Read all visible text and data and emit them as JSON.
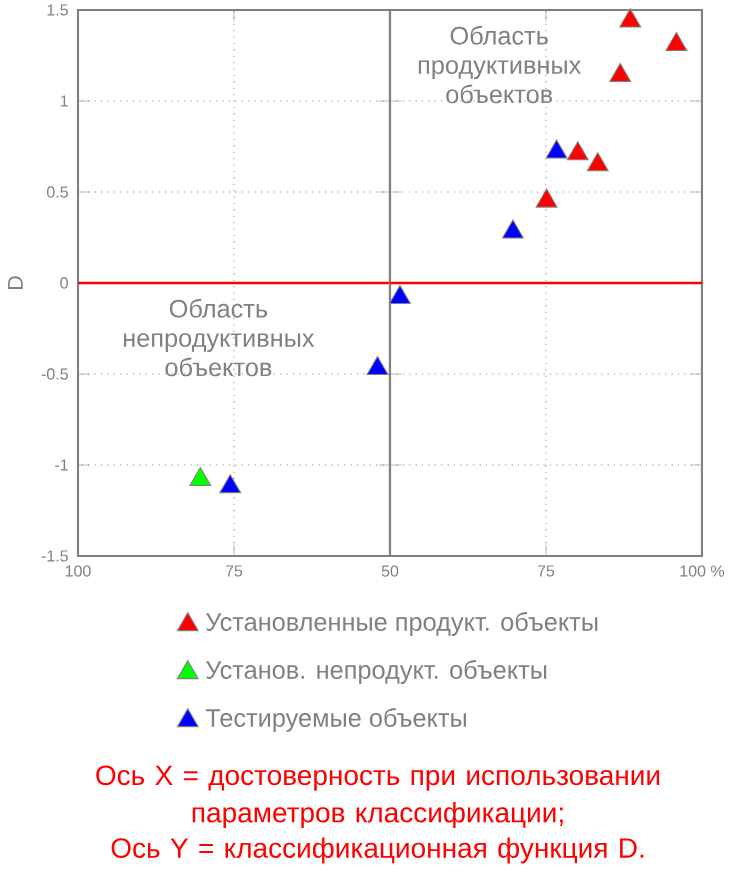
{
  "chart_data": [
    {
      "type": "scatter",
      "ylabel": "D",
      "xlim": [
        100,
        50
      ],
      "ylim": [
        -1.5,
        1.5
      ],
      "xticks": [
        100,
        75,
        50
      ],
      "yticks": [
        -1.5,
        -1,
        -0.5,
        0,
        0.5,
        1,
        1.5
      ],
      "grid": true,
      "legend": "bottom",
      "marker": "triangle",
      "ref_lines": [
        {
          "axis": "y",
          "value": 0,
          "color": "#ff0000"
        }
      ],
      "series": [
        {
          "name": "Установ. непродукт. объекты",
          "color": "#00ff00",
          "x": [
            80.4
          ],
          "values": [
            -1.08
          ]
        },
        {
          "name": "Тестируемые объекты",
          "color": "#0000ff",
          "x": [
            75.6,
            52.0
          ],
          "values": [
            -1.12,
            -0.47
          ]
        }
      ],
      "annotations": [
        "Область непродуктивных объектов",
        "Ось X  = достоверность при использовании параметров классификации;",
        "Ось Y = классификационная функция D."
      ]
    },
    {
      "type": "scatter",
      "xlim": [
        50,
        100
      ],
      "ylim": [
        -1.5,
        1.5
      ],
      "xticks": [
        {
          "value": 50,
          "label": null
        },
        75,
        {
          "value": 100,
          "label": "100 %"
        }
      ],
      "yticks": [
        -1.5,
        -1,
        -0.5,
        0,
        0.5,
        1,
        1.5
      ],
      "tick_labels": "x",
      "grid": true,
      "legend": "bottom",
      "marker": "triangle",
      "ref_lines": [
        {
          "axis": "y",
          "value": 0,
          "color": "#ff0000"
        }
      ],
      "series": [
        {
          "name": "Установленные продукт.  объекты",
          "color": "#ff0000",
          "x": [
            88.5,
            95.9,
            86.9,
            80.1,
            83.3,
            75.1
          ],
          "values": [
            1.44,
            1.31,
            1.14,
            0.71,
            0.65,
            0.45
          ]
        },
        {
          "color": "#0000ff",
          "x": [
            76.7,
            69.7,
            51.6
          ],
          "values": [
            0.72,
            0.28,
            -0.08
          ]
        }
      ],
      "annotations": [
        "Область продуктивных объектов"
      ]
    }
  ]
}
